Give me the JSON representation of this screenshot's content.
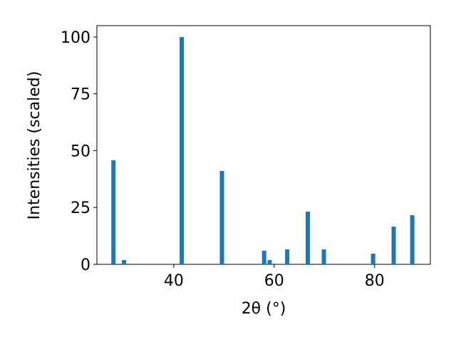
{
  "chart_data": {
    "type": "bar",
    "x": [
      28.0,
      30.1,
      41.6,
      49.6,
      58.0,
      59.1,
      62.6,
      66.7,
      69.9,
      79.7,
      83.8,
      87.5
    ],
    "values": [
      45.8,
      1.9,
      100,
      41.1,
      6.0,
      1.9,
      6.6,
      23.2,
      6.6,
      4.7,
      16.6,
      21.6
    ],
    "color": "#1f77b4",
    "xlabel": "2θ (°)",
    "ylabel": "Intensities (scaled)",
    "xlim": [
      24.7,
      91.1
    ],
    "ylim": [
      0,
      105
    ],
    "xticks": [
      40,
      60,
      80
    ],
    "yticks": [
      0,
      25,
      50,
      75,
      100
    ]
  }
}
